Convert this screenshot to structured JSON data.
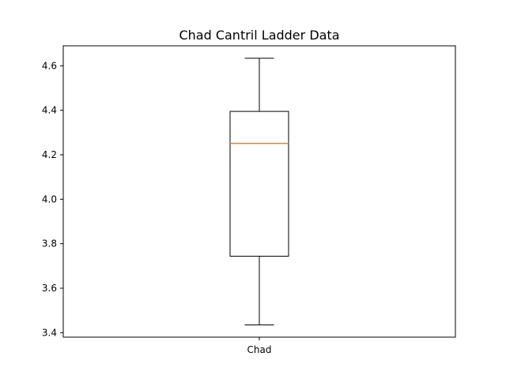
{
  "chart_data": {
    "type": "box",
    "title": "Chad Cantril Ladder Data",
    "xlabel": "",
    "ylabel": "",
    "categories": [
      "Chad"
    ],
    "boxes": [
      {
        "name": "Chad",
        "whisker_low": 3.435,
        "q1": 3.744,
        "median": 4.251,
        "q3": 4.395,
        "whisker_high": 4.634
      }
    ],
    "ylim": [
      3.38,
      4.69
    ],
    "yticks": [
      3.4,
      3.6,
      3.8,
      4.0,
      4.2,
      4.4,
      4.6
    ],
    "ytick_labels": [
      "3.4",
      "3.6",
      "3.8",
      "4.0",
      "4.2",
      "4.4",
      "4.6"
    ],
    "grid": false,
    "colors": {
      "box": "#000000",
      "median": "#ff7f0e",
      "background": "#ffffff"
    }
  }
}
